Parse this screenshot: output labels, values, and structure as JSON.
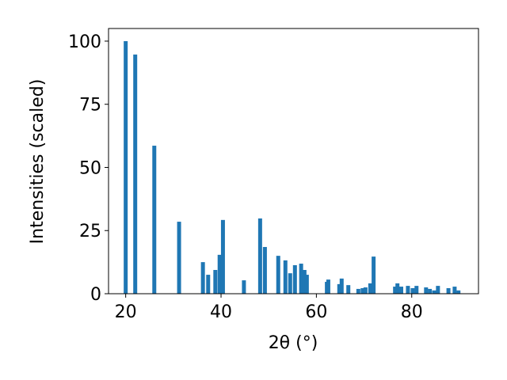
{
  "chart_data": {
    "type": "bar",
    "xlabel": "2θ (°)",
    "ylabel": "Intensities (scaled)",
    "x": [
      20.0,
      22.0,
      26.0,
      31.2,
      36.2,
      37.3,
      38.8,
      39.7,
      40.4,
      44.8,
      48.2,
      49.2,
      52.0,
      53.5,
      54.5,
      55.5,
      56.8,
      57.5,
      58.0,
      62.2,
      62.5,
      64.8,
      65.3,
      66.7,
      68.8,
      69.7,
      70.3,
      71.3,
      72.0,
      76.5,
      77.0,
      77.8,
      79.2,
      80.2,
      81.0,
      83.0,
      83.8,
      84.7,
      85.5,
      87.7,
      89.0,
      89.8
    ],
    "values": [
      100,
      94.7,
      58.6,
      28.5,
      12.5,
      7.5,
      9.4,
      15.4,
      29.2,
      5.3,
      29.8,
      18.5,
      15.0,
      13.2,
      8.1,
      11.3,
      11.9,
      9.4,
      7.5,
      4.7,
      5.6,
      3.8,
      6.0,
      3.4,
      1.9,
      2.2,
      2.5,
      4.1,
      14.7,
      2.8,
      4.1,
      2.8,
      3.1,
      2.2,
      3.1,
      2.5,
      1.9,
      1.3,
      3.1,
      2.2,
      2.8,
      1.3
    ],
    "color": "#1f77b4",
    "xlim": [
      16.4,
      94.0
    ],
    "xticks": [
      20,
      40,
      60,
      80
    ],
    "ylim": [
      0,
      105
    ],
    "yticks": [
      0,
      25,
      50,
      75,
      100
    ]
  }
}
